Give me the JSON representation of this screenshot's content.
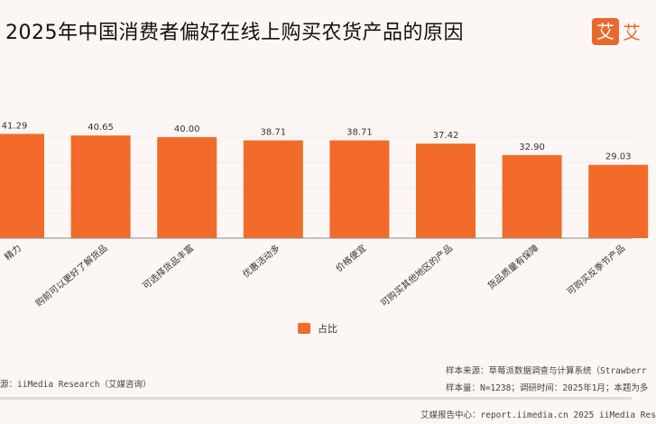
{
  "title": "2025年中国消费者偏好在线上购买农货产品的原因",
  "logo": {
    "char": "艾",
    "text": "艾"
  },
  "chart_data": {
    "type": "bar",
    "categories": [
      "精力",
      "购前可以更好了解货品",
      "可选择货品丰富",
      "优惠活动多",
      "价格便宜",
      "可购买其他地区的产品",
      "货品质量有保障",
      "可购买反季节产品"
    ],
    "series": [
      {
        "name": "占比",
        "values": [
          41.29,
          40.65,
          40.0,
          38.71,
          38.71,
          37.42,
          32.9,
          29.03
        ]
      }
    ],
    "value_labels": [
      "41.29",
      "40.65",
      "40.00",
      "38.71",
      "38.71",
      "37.42",
      "32.90",
      "29.03"
    ],
    "ylim": [
      0,
      50
    ],
    "grid": true,
    "legend": "bottom-center",
    "color": "#f26b2a"
  },
  "legend_label": "占比",
  "source": "源：iiMedia Research（艾媒咨询）",
  "sample_source": "样本来源：草莓派数据调查与计算系统（Strawberr",
  "sample_size": "样本量：N=1238；调研时间：2025年1月；本题为多",
  "footer": "艾媒报告中心：report.iimedia.cn   2025 iiMedia Res"
}
